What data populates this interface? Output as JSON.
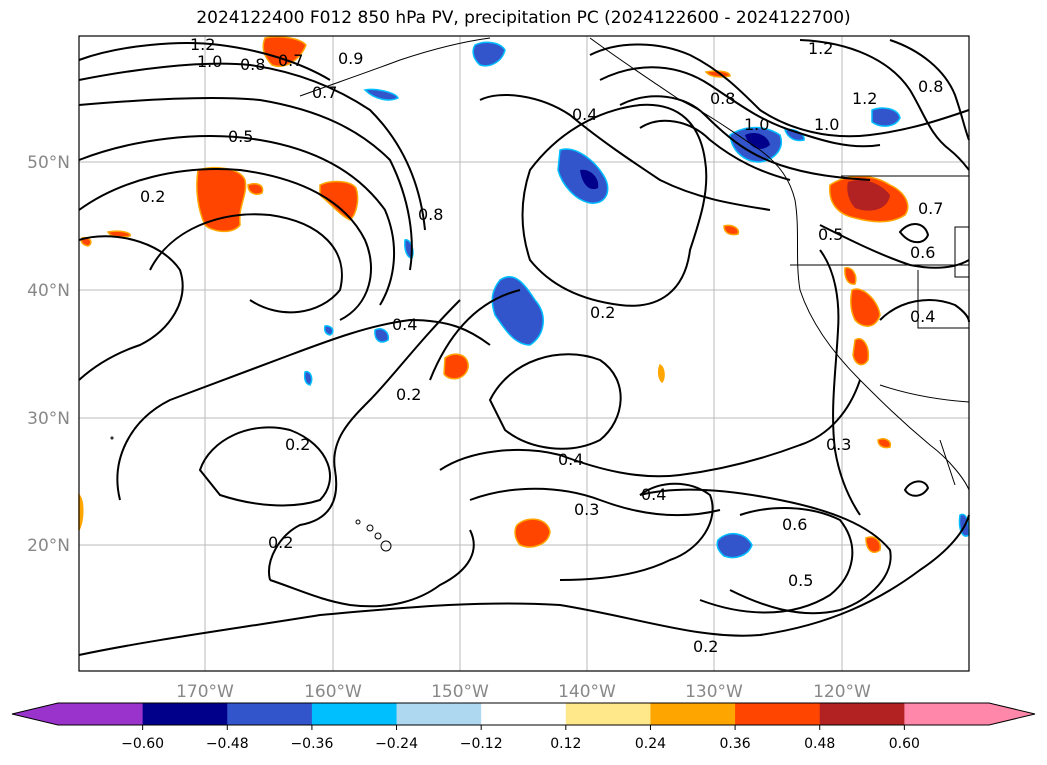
{
  "title": "2024122400 F012 850 hPa PV, precipitation PC (2024122600 - 2024122700)",
  "map": {
    "lon_ticks": [
      "170°W",
      "160°W",
      "150°W",
      "140°W",
      "130°W",
      "120°W"
    ],
    "lat_ticks": [
      "50°N",
      "40°N",
      "30°N",
      "20°N"
    ],
    "contour_labels": [
      "1.2",
      "1.0",
      "0.8",
      "0.7",
      "0.9",
      "0.7",
      "0.5",
      "0.2",
      "0.8",
      "0.4",
      "0.2",
      "0.2",
      "0.2",
      "0.4",
      "0.2",
      "0.4",
      "0.3",
      "0.4",
      "0.6",
      "0.5",
      "0.2",
      "0.8",
      "1.0",
      "1.2",
      "0.8",
      "1.2",
      "1.0",
      "0.7",
      "0.5",
      "0.6",
      "0.4",
      "0.3"
    ]
  },
  "colorbar": {
    "ticks": [
      "−0.60",
      "−0.48",
      "−0.36",
      "−0.24",
      "−0.12",
      "0.12",
      "0.24",
      "0.36",
      "0.48",
      "0.60"
    ],
    "colors": [
      "#9933cc",
      "#00008b",
      "#3355cc",
      "#00bfff",
      "#add8f0",
      "#ffffff",
      "#ffe88a",
      "#ffa500",
      "#ff4500",
      "#b22222",
      "#ff88aa"
    ]
  }
}
